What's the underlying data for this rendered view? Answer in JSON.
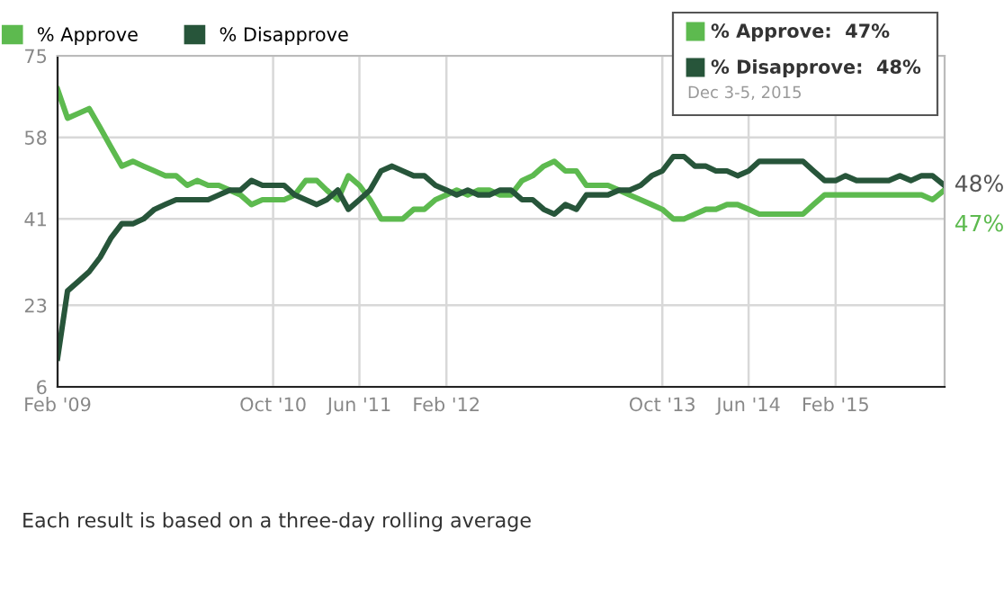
{
  "chart_data": {
    "type": "line",
    "x": [
      "2009-02",
      "2009-03",
      "2009-04",
      "2009-05",
      "2009-06",
      "2009-07",
      "2009-08",
      "2009-09",
      "2009-10",
      "2009-11",
      "2009-12",
      "2010-01",
      "2010-02",
      "2010-03",
      "2010-04",
      "2010-05",
      "2010-06",
      "2010-07",
      "2010-08",
      "2010-09",
      "2010-10",
      "2010-11",
      "2010-12",
      "2011-01",
      "2011-02",
      "2011-03",
      "2011-04",
      "2011-05",
      "2011-06",
      "2011-07",
      "2011-08",
      "2011-09",
      "2011-10",
      "2011-11",
      "2011-12",
      "2012-01",
      "2012-02",
      "2012-03",
      "2012-04",
      "2012-05",
      "2012-06",
      "2012-07",
      "2012-08",
      "2012-09",
      "2012-10",
      "2012-11",
      "2012-12",
      "2013-01",
      "2013-02",
      "2013-03",
      "2013-04",
      "2013-05",
      "2013-06",
      "2013-07",
      "2013-08",
      "2013-09",
      "2013-10",
      "2013-11",
      "2013-12",
      "2014-01",
      "2014-02",
      "2014-03",
      "2014-04",
      "2014-05",
      "2014-06",
      "2014-07",
      "2014-08",
      "2014-09",
      "2014-10",
      "2014-11",
      "2014-12",
      "2015-01",
      "2015-02",
      "2015-03",
      "2015-04",
      "2015-05",
      "2015-06",
      "2015-07",
      "2015-08",
      "2015-09",
      "2015-10",
      "2015-11",
      "2015-12-04"
    ],
    "series": [
      {
        "name": "% Approve",
        "color": "#5dba4f",
        "values": [
          68,
          62,
          63,
          64,
          60,
          56,
          52,
          53,
          52,
          51,
          50,
          50,
          48,
          49,
          48,
          48,
          47,
          46,
          44,
          45,
          45,
          45,
          46,
          49,
          49,
          47,
          45,
          50,
          48,
          45,
          41,
          41,
          41,
          43,
          43,
          45,
          46,
          47,
          46,
          47,
          47,
          46,
          46,
          49,
          50,
          52,
          53,
          51,
          51,
          48,
          48,
          48,
          47,
          46,
          45,
          44,
          43,
          41,
          41,
          42,
          43,
          43,
          44,
          44,
          43,
          42,
          42,
          42,
          42,
          42,
          44,
          46,
          46,
          46,
          46,
          46,
          46,
          46,
          46,
          46,
          46,
          45,
          47
        ]
      },
      {
        "name": "% Disapprove",
        "color": "#27553a",
        "values": [
          12,
          26,
          28,
          30,
          33,
          37,
          40,
          40,
          41,
          43,
          44,
          45,
          45,
          45,
          45,
          46,
          47,
          47,
          49,
          48,
          48,
          48,
          46,
          45,
          44,
          45,
          47,
          43,
          45,
          47,
          51,
          52,
          51,
          50,
          50,
          48,
          47,
          46,
          47,
          46,
          46,
          47,
          47,
          45,
          45,
          43,
          42,
          44,
          43,
          46,
          46,
          46,
          47,
          47,
          48,
          50,
          51,
          54,
          54,
          52,
          52,
          51,
          51,
          50,
          51,
          53,
          53,
          53,
          53,
          53,
          51,
          49,
          49,
          50,
          49,
          49,
          49,
          49,
          50,
          49,
          50,
          50,
          48
        ]
      }
    ],
    "xlim": [
      "2009-02-01",
      "2015-12-05"
    ],
    "xticks": [
      {
        "value": "2009-02-01",
        "label": "Feb '09"
      },
      {
        "value": "2010-10-01",
        "label": "Oct '10"
      },
      {
        "value": "2011-06-01",
        "label": "Jun '11"
      },
      {
        "value": "2012-02-01",
        "label": "Feb '12"
      },
      {
        "value": "2013-10-01",
        "label": "Oct '13"
      },
      {
        "value": "2014-06-01",
        "label": "Jun '14"
      },
      {
        "value": "2015-02-01",
        "label": "Feb '15"
      }
    ],
    "ylim": [
      6,
      75
    ],
    "yticks": [
      6,
      23,
      41,
      58,
      75
    ],
    "grid": true,
    "legend": "top left",
    "marker": "none",
    "line_style": "solid",
    "annotations": [
      "% Approve:  47%",
      "% Disapprove:  48%",
      "Dec 3-5, 2015",
      {
        "text": "48%",
        "x": "2015-12-04",
        "y": 48
      },
      {
        "text": "47%",
        "x": "2015-12-04",
        "y": 47
      },
      "Each result is based on a three-day rolling average"
    ]
  }
}
